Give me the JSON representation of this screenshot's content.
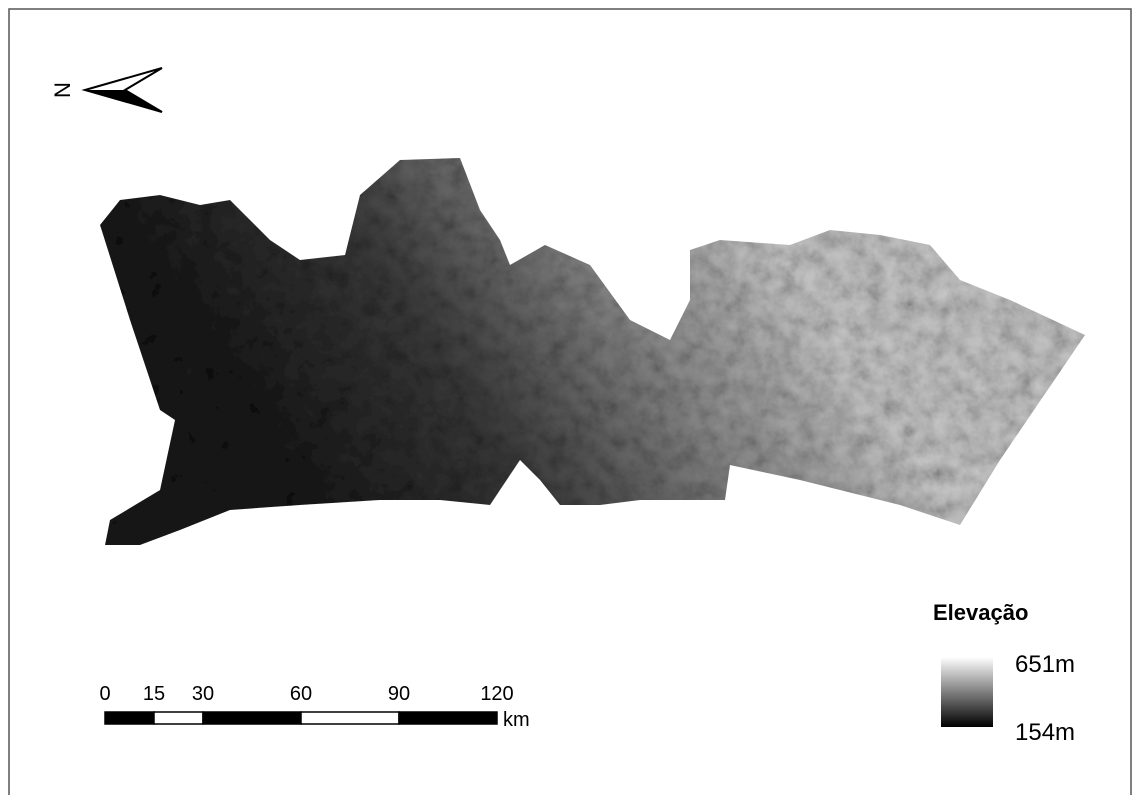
{
  "north_arrow": {
    "label": "N"
  },
  "legend": {
    "title": "Elevação",
    "max": "651m",
    "min": "154m"
  },
  "scale_bar": {
    "ticks": [
      0,
      15,
      30,
      60,
      90,
      120
    ],
    "unit": "km"
  }
}
